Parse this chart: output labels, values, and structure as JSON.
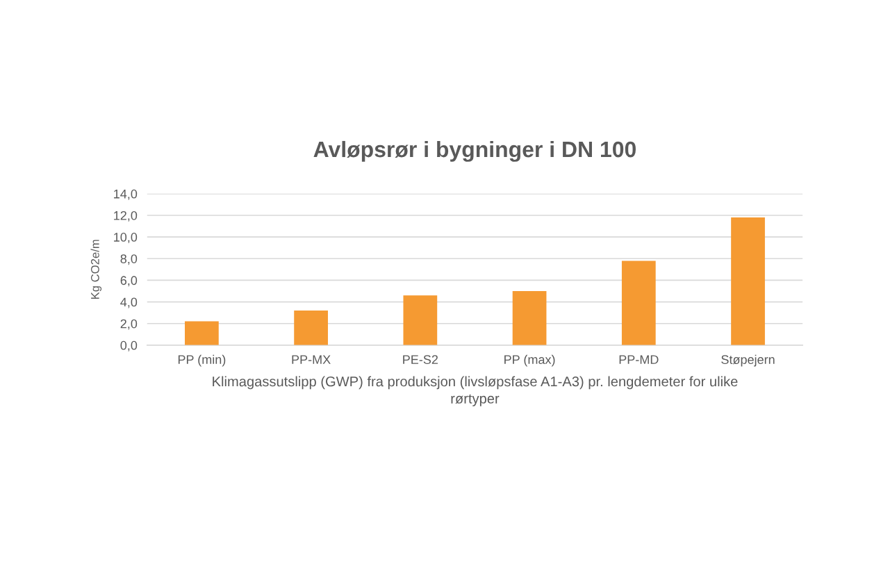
{
  "chart_data": {
    "type": "bar",
    "title": "Avløpsrør i bygninger i DN 100",
    "xlabel": "Klimagassutslipp (GWP) fra produksjon (livsløpsfase A1-A3) pr. lengdemeter for ulike\nrørtyper",
    "ylabel": "Kg CO2e/m",
    "categories": [
      "PP (min)",
      "PP-MX",
      "PE-S2",
      "PP (max)",
      "PP-MD",
      "Støpejern"
    ],
    "values": [
      2.2,
      3.2,
      4.6,
      5.0,
      7.8,
      11.8
    ],
    "color": "#f59a32",
    "ylim": [
      0,
      14
    ],
    "yticks": [
      {
        "value": 0,
        "label": "0,0"
      },
      {
        "value": 2,
        "label": "2,0"
      },
      {
        "value": 4,
        "label": "4,0"
      },
      {
        "value": 6,
        "label": "6,0"
      },
      {
        "value": 8,
        "label": "8,0"
      },
      {
        "value": 10,
        "label": "10,0"
      },
      {
        "value": 12,
        "label": "12,0"
      },
      {
        "value": 14,
        "label": "14,0"
      }
    ],
    "grid": "y"
  }
}
